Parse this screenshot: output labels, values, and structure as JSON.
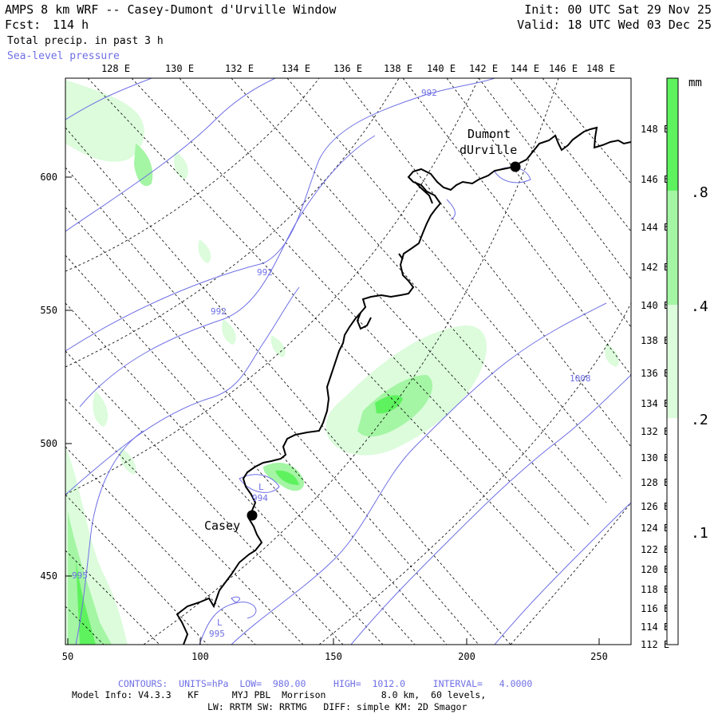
{
  "header": {
    "title": "AMPS 8 km WRF -- Casey-Dumont d'Urville Window",
    "fcst_label": "Fcst:",
    "fcst_value": "114 h",
    "field": "Total precip. in past 3 h",
    "overlay": "Sea-level pressure",
    "init": "Init: 00 UTC Sat 29 Nov 25",
    "valid": "Valid: 18 UTC Wed 03 Dec 25"
  },
  "map": {
    "top_lon_labels": [
      "128 E",
      "130 E",
      "132 E",
      "134 E",
      "136 E",
      "138 E",
      "140 E",
      "142 E",
      "144 E",
      "146 E",
      "148 E"
    ],
    "right_lon_labels": [
      "148 E",
      "146 E",
      "144 E",
      "142 E",
      "140 E",
      "138 E",
      "136 E",
      "134 E",
      "132 E",
      "130 E",
      "128 E",
      "126 E",
      "124 E",
      "122 E",
      "120 E",
      "118 E",
      "116 E",
      "114 E",
      "112 E"
    ],
    "left_y_labels": [
      "600",
      "550",
      "500",
      "450"
    ],
    "bottom_x_labels": [
      "50",
      "100",
      "150",
      "200",
      "250"
    ],
    "stations": [
      {
        "name_line1": "Dumont",
        "name_line2": "dUrville"
      },
      {
        "name_line1": "Casey",
        "name_line2": ""
      }
    ],
    "contour_labels": [
      "992",
      "992",
      "992",
      "1008",
      "994",
      "L",
      "995",
      "L",
      "995"
    ]
  },
  "colorbar": {
    "unit": "mm",
    "labels": [
      ".8",
      ".4",
      ".2",
      ".1"
    ],
    "colors": {
      "0.8": "#5ef25e",
      "0.4": "#a4f5a4",
      "0.2": "#dcfcdc",
      "0.1": "#ffffff"
    }
  },
  "footer": {
    "contours": "CONTOURS:  UNITS=hPa  LOW=  980.00     HIGH=  1012.0     INTERVAL=   4.0000",
    "model_info": "Model Info: V4.3.3   KF      MYJ PBL  Morrison          8.0 km,  60 levels,",
    "physics": "LW: RRTM SW: RRTMG   DIFF: simple KM: 2D Smagor"
  }
}
